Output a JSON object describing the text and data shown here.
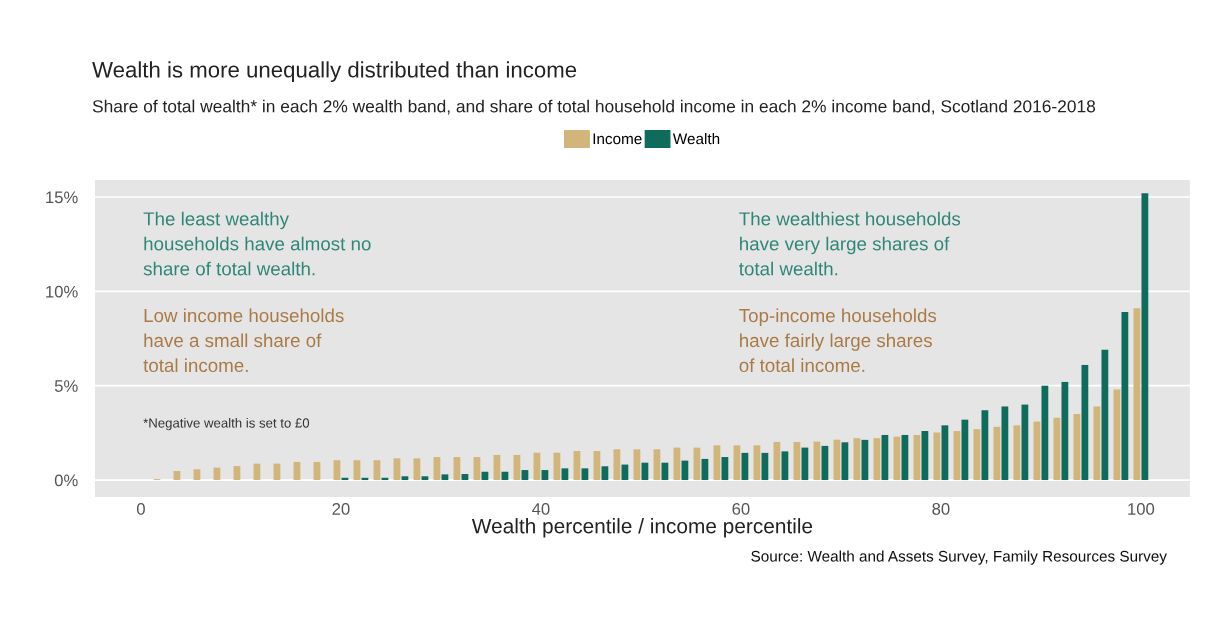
{
  "chart_data": {
    "type": "bar",
    "title": "Wealth is more unequally distributed than income",
    "subtitle": "Share of total wealth* in each 2% wealth band, and share of total household income in each 2% income band, Scotland 2016-2018",
    "xlabel": "Wealth percentile / income percentile",
    "x": [
      2,
      4,
      6,
      8,
      10,
      12,
      14,
      16,
      18,
      20,
      22,
      24,
      26,
      28,
      30,
      32,
      34,
      36,
      38,
      40,
      42,
      44,
      46,
      48,
      50,
      52,
      54,
      56,
      58,
      60,
      62,
      64,
      66,
      68,
      70,
      72,
      74,
      76,
      78,
      80,
      82,
      84,
      86,
      88,
      90,
      92,
      94,
      96,
      98,
      100
    ],
    "series": [
      {
        "name": "Income",
        "color": "#d2b57b",
        "values": [
          0.05,
          0.48,
          0.57,
          0.66,
          0.74,
          0.87,
          0.87,
          0.96,
          0.96,
          1.05,
          1.05,
          1.05,
          1.15,
          1.15,
          1.22,
          1.22,
          1.22,
          1.33,
          1.33,
          1.45,
          1.45,
          1.54,
          1.54,
          1.63,
          1.63,
          1.63,
          1.72,
          1.72,
          1.84,
          1.84,
          1.84,
          2.02,
          2.02,
          2.04,
          2.14,
          2.22,
          2.22,
          2.3,
          2.39,
          2.52,
          2.6,
          2.7,
          2.82,
          2.9,
          3.1,
          3.3,
          3.5,
          3.9,
          4.8,
          9.1
        ]
      },
      {
        "name": "Wealth",
        "color": "#0f6b5c",
        "values": [
          0,
          0,
          0,
          0,
          0,
          0,
          0,
          0,
          0,
          0.12,
          0.12,
          0.12,
          0.2,
          0.2,
          0.3,
          0.32,
          0.44,
          0.44,
          0.53,
          0.53,
          0.62,
          0.62,
          0.73,
          0.82,
          0.92,
          0.92,
          1.03,
          1.12,
          1.22,
          1.44,
          1.44,
          1.52,
          1.72,
          1.81,
          2.0,
          2.13,
          2.39,
          2.39,
          2.6,
          2.9,
          3.2,
          3.7,
          3.9,
          4.0,
          5.0,
          5.2,
          6.1,
          6.9,
          8.9,
          15.2
        ]
      }
    ],
    "xlim": [
      -4.6,
      104.9
    ],
    "ylim": [
      -0.9,
      15.9
    ],
    "xticks": [
      0,
      20,
      40,
      60,
      80,
      100
    ],
    "yticks": [
      {
        "value": 0,
        "label": "0%"
      },
      {
        "value": 5,
        "label": "5%"
      },
      {
        "value": 10,
        "label": "10%"
      },
      {
        "value": 15,
        "label": "15%"
      }
    ],
    "grid": "y",
    "legend": "top",
    "annotations": [
      "The least wealthy\nhouseholds have almost no\nshare of total wealth.",
      "Low income households\nhave a small share of\ntotal income.",
      "The wealthiest households\nhave very large shares of\ntotal wealth.",
      "Top-income households\nhave fairly large shares\nof total income.",
      "*Negative wealth is set to £0",
      "Source: Wealth and Assets Survey, Family Resources Survey"
    ]
  }
}
